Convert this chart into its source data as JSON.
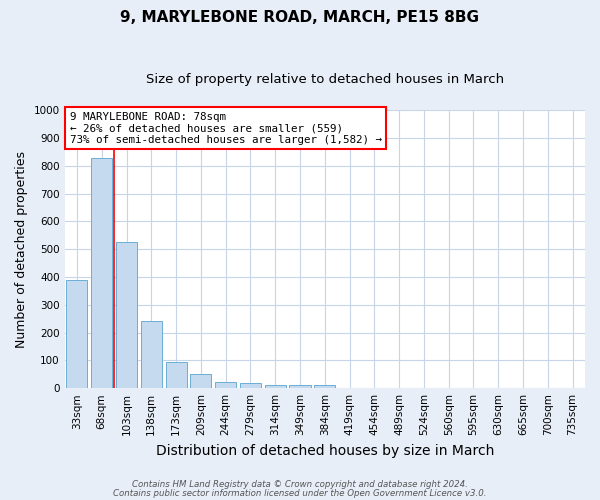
{
  "title": "9, MARYLEBONE ROAD, MARCH, PE15 8BG",
  "subtitle": "Size of property relative to detached houses in March",
  "xlabel": "Distribution of detached houses by size in March",
  "ylabel": "Number of detached properties",
  "bins": [
    "33sqm",
    "68sqm",
    "103sqm",
    "138sqm",
    "173sqm",
    "209sqm",
    "244sqm",
    "279sqm",
    "314sqm",
    "349sqm",
    "384sqm",
    "419sqm",
    "454sqm",
    "489sqm",
    "524sqm",
    "560sqm",
    "595sqm",
    "630sqm",
    "665sqm",
    "700sqm",
    "735sqm"
  ],
  "values": [
    390,
    830,
    525,
    243,
    95,
    50,
    22,
    18,
    13,
    10,
    10,
    0,
    0,
    0,
    0,
    0,
    0,
    0,
    0,
    0,
    0
  ],
  "bar_color": "#c5d9ef",
  "bar_edge_color": "#6baed6",
  "red_line_x": 1.5,
  "annotation_title": "9 MARYLEBONE ROAD: 78sqm",
  "annotation_line1": "← 26% of detached houses are smaller (559)",
  "annotation_line2": "73% of semi-detached houses are larger (1,582) →",
  "ylim": [
    0,
    1000
  ],
  "yticks": [
    0,
    100,
    200,
    300,
    400,
    500,
    600,
    700,
    800,
    900,
    1000
  ],
  "footnote1": "Contains HM Land Registry data © Crown copyright and database right 2024.",
  "footnote2": "Contains public sector information licensed under the Open Government Licence v3.0.",
  "bg_color": "#e8eef8",
  "plot_bg_color": "#ffffff",
  "grid_color": "#c8d4e8",
  "title_fontsize": 11,
  "subtitle_fontsize": 9.5,
  "xlabel_fontsize": 10,
  "ylabel_fontsize": 9,
  "tick_fontsize": 7.5
}
